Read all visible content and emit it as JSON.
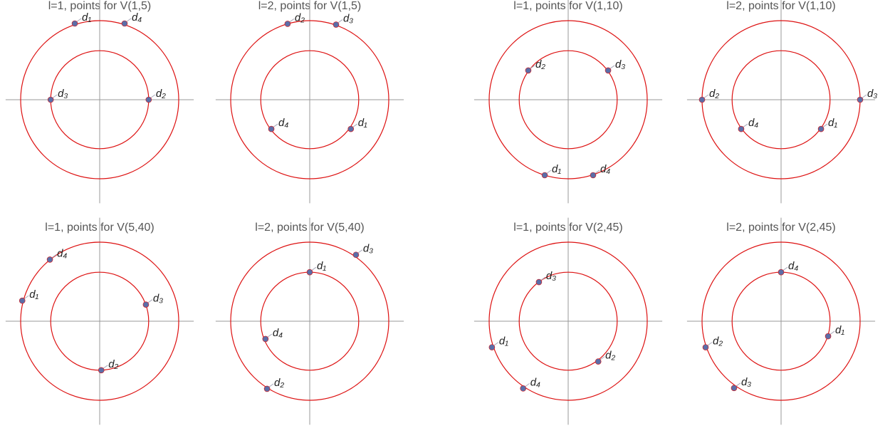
{
  "chart_data": [
    {
      "type": "scatter",
      "title": "l=1, points for V(1,5)",
      "radii": [
        0.62,
        1
      ],
      "xlim": [
        -1.19,
        1.19
      ],
      "ylim": [
        -1.31,
        1.31
      ],
      "circle_color": "#dd1111",
      "point_color": "#5b6ea8",
      "points": [
        {
          "label": "d₁",
          "x": -0.315,
          "y": 0.964
        },
        {
          "label": "d₂",
          "x": 0.62,
          "y": 0
        },
        {
          "label": "d₃",
          "x": -0.62,
          "y": 0
        },
        {
          "label": "d₄",
          "x": 0.315,
          "y": 0.964
        }
      ]
    },
    {
      "type": "scatter",
      "title": "l=2, points for V(1,5)",
      "radii": [
        0.62,
        1
      ],
      "xlim": [
        -1.19,
        1.19
      ],
      "ylim": [
        -1.31,
        1.31
      ],
      "circle_color": "#dd1111",
      "point_color": "#5b6ea8",
      "points": [
        {
          "label": "d₁",
          "x": 0.52,
          "y": -0.37
        },
        {
          "label": "d₂",
          "x": -0.28,
          "y": 0.96
        },
        {
          "label": "d₃",
          "x": 0.333,
          "y": 0.95
        },
        {
          "label": "d₄",
          "x": -0.486,
          "y": -0.37
        }
      ]
    },
    {
      "type": "scatter",
      "title": "l=1, points for V(1,10)",
      "radii": [
        0.62,
        1
      ],
      "xlim": [
        -1.19,
        1.19
      ],
      "ylim": [
        -1.31,
        1.31
      ],
      "circle_color": "#dd1111",
      "point_color": "#5b6ea8",
      "points": [
        {
          "label": "d₁",
          "x": -0.297,
          "y": -0.955
        },
        {
          "label": "d₂",
          "x": -0.505,
          "y": 0.37
        },
        {
          "label": "d₃",
          "x": 0.505,
          "y": 0.37
        },
        {
          "label": "d₄",
          "x": 0.315,
          "y": -0.955
        }
      ]
    },
    {
      "type": "scatter",
      "title": "l=2, points for V(1,10)",
      "radii": [
        0.62,
        1
      ],
      "xlim": [
        -1.19,
        1.19
      ],
      "ylim": [
        -1.31,
        1.31
      ],
      "circle_color": "#dd1111",
      "point_color": "#5b6ea8",
      "points": [
        {
          "label": "d₁",
          "x": 0.505,
          "y": -0.37
        },
        {
          "label": "d₂",
          "x": -1,
          "y": 0
        },
        {
          "label": "d₃",
          "x": 1,
          "y": 0
        },
        {
          "label": "d₄",
          "x": -0.505,
          "y": -0.37
        }
      ]
    },
    {
      "type": "scatter",
      "title": "l=1, points for V(5,40)",
      "radii": [
        0.62,
        1
      ],
      "xlim": [
        -1.19,
        1.19
      ],
      "ylim": [
        -1.31,
        1.31
      ],
      "circle_color": "#dd1111",
      "point_color": "#5b6ea8",
      "points": [
        {
          "label": "d₁",
          "x": -0.98,
          "y": 0.26
        },
        {
          "label": "d₂",
          "x": 0.02,
          "y": -0.62
        },
        {
          "label": "d₃",
          "x": 0.585,
          "y": 0.21
        },
        {
          "label": "d₄",
          "x": -0.63,
          "y": 0.78
        }
      ]
    },
    {
      "type": "scatter",
      "title": "l=2, points for V(5,40)",
      "radii": [
        0.62,
        1
      ],
      "xlim": [
        -1.19,
        1.19
      ],
      "ylim": [
        -1.31,
        1.31
      ],
      "circle_color": "#dd1111",
      "point_color": "#5b6ea8",
      "points": [
        {
          "label": "d₁",
          "x": 0,
          "y": 0.62
        },
        {
          "label": "d₂",
          "x": -0.54,
          "y": -0.855
        },
        {
          "label": "d₃",
          "x": 0.585,
          "y": 0.84
        },
        {
          "label": "d₄",
          "x": -0.56,
          "y": -0.225
        }
      ]
    },
    {
      "type": "scatter",
      "title": "l=1, points for V(2,45)",
      "radii": [
        0.62,
        1
      ],
      "xlim": [
        -1.19,
        1.19
      ],
      "ylim": [
        -1.31,
        1.31
      ],
      "circle_color": "#dd1111",
      "point_color": "#5b6ea8",
      "points": [
        {
          "label": "d₁",
          "x": -0.965,
          "y": -0.33
        },
        {
          "label": "d₂",
          "x": 0.38,
          "y": -0.51
        },
        {
          "label": "d₃",
          "x": -0.37,
          "y": 0.495
        },
        {
          "label": "d₄",
          "x": -0.57,
          "y": -0.85
        }
      ]
    },
    {
      "type": "scatter",
      "title": "l=2, points for V(2,45)",
      "radii": [
        0.62,
        1
      ],
      "xlim": [
        -1.19,
        1.19
      ],
      "ylim": [
        -1.31,
        1.31
      ],
      "circle_color": "#dd1111",
      "point_color": "#5b6ea8",
      "points": [
        {
          "label": "d₁",
          "x": 0.595,
          "y": -0.19
        },
        {
          "label": "d₂",
          "x": -0.955,
          "y": -0.33
        },
        {
          "label": "d₃",
          "x": -0.595,
          "y": -0.845
        },
        {
          "label": "d₄",
          "x": 0,
          "y": 0.62
        }
      ]
    }
  ]
}
